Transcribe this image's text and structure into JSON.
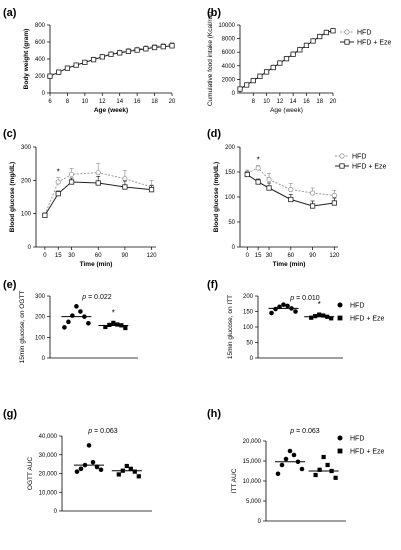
{
  "chart_data": [
    {
      "panel": "(a)",
      "type": "line",
      "xlabel": "Age  (week)",
      "ylabel": "Body weight (gram)",
      "xlim": [
        6,
        20
      ],
      "ylim": [
        0,
        800
      ],
      "xticks": [
        "6",
        "8",
        "10",
        "12",
        "14",
        "16",
        "18",
        "20"
      ],
      "yticks": [
        "0",
        "200",
        "400",
        "600",
        "800"
      ],
      "x": [
        6,
        7,
        8,
        9,
        10,
        11,
        12,
        13,
        14,
        15,
        16,
        17,
        18,
        19,
        20
      ],
      "series": [
        {
          "name": "HFD",
          "style": "open-circle-dotted",
          "values": [
            200,
            248,
            295,
            330,
            362,
            398,
            430,
            462,
            480,
            500,
            515,
            533,
            548,
            560,
            572
          ],
          "errors": [
            10,
            10,
            10,
            12,
            12,
            14,
            14,
            15,
            16,
            16,
            18,
            18,
            18,
            20,
            20
          ]
        },
        {
          "name": "HFD + Eze",
          "style": "square-solid",
          "values": [
            198,
            245,
            292,
            328,
            360,
            392,
            425,
            455,
            472,
            490,
            505,
            520,
            535,
            545,
            555
          ],
          "errors": [
            10,
            10,
            10,
            12,
            12,
            12,
            14,
            14,
            15,
            15,
            16,
            16,
            16,
            18,
            18
          ]
        }
      ]
    },
    {
      "panel": "(b)",
      "type": "line",
      "xlabel": "Age  (week)",
      "ylabel": "Cumulative food intake (Kcal/rat)",
      "xlim": [
        6,
        20
      ],
      "ylim": [
        0,
        10000
      ],
      "xticks": [
        "8",
        "10",
        "12",
        "14",
        "16",
        "18",
        "20"
      ],
      "yticks": [
        "0",
        "2000",
        "4000",
        "6000",
        "8000",
        "10000"
      ],
      "x": [
        6,
        7,
        8,
        9,
        10,
        11,
        12,
        13,
        14,
        15,
        16,
        17,
        18,
        19,
        20
      ],
      "series": [
        {
          "name": "HFD",
          "style": "open-circle-dotted",
          "values": [
            600,
            1200,
            1850,
            2500,
            3150,
            3800,
            4450,
            5100,
            5750,
            6400,
            7050,
            7700,
            8350,
            8950,
            9200
          ],
          "errors": []
        },
        {
          "name": "HFD + Eze",
          "style": "square-solid",
          "values": [
            580,
            1180,
            1820,
            2460,
            3100,
            3750,
            4400,
            5050,
            5700,
            6350,
            7000,
            7650,
            8300,
            8900,
            9150
          ],
          "errors": []
        }
      ],
      "legend": [
        "HFD",
        "HFD + Eze"
      ]
    },
    {
      "panel": "(c)",
      "type": "line",
      "xlabel": "Time (min)",
      "ylabel": "Blood glucose (mg/dL)",
      "xlim": [
        -10,
        125
      ],
      "ylim": [
        0,
        300
      ],
      "xticks": [
        "0",
        "15",
        "30",
        "60",
        "90",
        "120"
      ],
      "yticks": [
        "0",
        "100",
        "200",
        "300"
      ],
      "x": [
        0,
        15,
        30,
        60,
        90,
        120
      ],
      "series": [
        {
          "name": "HFD",
          "style": "open-circle-dotted",
          "values": [
            97,
            195,
            218,
            223,
            205,
            180
          ],
          "errors": [
            5,
            14,
            18,
            28,
            25,
            20
          ]
        },
        {
          "name": "HFD + Eze",
          "style": "square-solid",
          "values": [
            95,
            160,
            195,
            192,
            180,
            172
          ],
          "errors": [
            5,
            8,
            12,
            20,
            18,
            12
          ]
        }
      ],
      "annotations": [
        "*"
      ]
    },
    {
      "panel": "(d)",
      "type": "line",
      "xlabel": "Time (min)",
      "ylabel": "Blood glucose (mg/dL)",
      "xlim": [
        -10,
        125
      ],
      "ylim": [
        0,
        200
      ],
      "xticks": [
        "0",
        "15",
        "30",
        "60",
        "90",
        "120"
      ],
      "yticks": [
        "0",
        "50",
        "100",
        "150",
        "200"
      ],
      "x": [
        0,
        15,
        30,
        60,
        90,
        120
      ],
      "series": [
        {
          "name": "HFD",
          "style": "open-circle-dotted",
          "values": [
            148,
            158,
            135,
            115,
            108,
            103
          ],
          "errors": [
            6,
            5,
            12,
            12,
            10,
            10
          ]
        },
        {
          "name": "HFD + Eze",
          "style": "square-solid",
          "values": [
            145,
            130,
            118,
            95,
            82,
            88
          ],
          "errors": [
            5,
            6,
            10,
            10,
            10,
            10
          ]
        }
      ],
      "annotations": [
        "*"
      ],
      "legend": [
        "HFD",
        "HFD + Eze"
      ]
    },
    {
      "panel": "(e)",
      "type": "scatter",
      "ylabel": "15min glucose, on OGTT",
      "ylim": [
        0,
        300
      ],
      "yticks": [
        "0",
        "100",
        "200",
        "300"
      ],
      "p_prefix": "p",
      "p_value": " = 0.022",
      "groups": [
        {
          "name": "HFD",
          "marker": "circle",
          "values": [
            250,
            225,
            205,
            200,
            175,
            168,
            148
          ],
          "median": 200
        },
        {
          "name": "HFD + Eze",
          "marker": "square",
          "values": [
            170,
            162,
            160,
            158,
            150,
            145
          ],
          "median": 157,
          "star": "*"
        }
      ],
      "legend": [
        "HFD",
        "HFD + Eze"
      ]
    },
    {
      "panel": "(f)",
      "type": "scatter",
      "ylabel": "15min glucose, on ITT",
      "ylim": [
        0,
        200
      ],
      "yticks": [
        "0",
        "50",
        "100",
        "150",
        "200"
      ],
      "p_prefix": "p",
      "p_value": " = 0.010",
      "groups": [
        {
          "name": "HFD",
          "marker": "circle",
          "values": [
            172,
            168,
            165,
            160,
            158,
            150,
            145
          ],
          "median": 160
        },
        {
          "name": "HFD + Eze",
          "marker": "square",
          "values": [
            140,
            137,
            135,
            133,
            130,
            128
          ],
          "median": 133,
          "star": "*"
        }
      ]
    },
    {
      "panel": "(g)",
      "type": "scatter",
      "ylabel": "OGTT  AUC",
      "ylim": [
        0,
        40000
      ],
      "yticks": [
        "0",
        "10,000",
        "20,000",
        "30,000",
        "40,000"
      ],
      "p_prefix": "p",
      "p_value": " = 0.063",
      "groups": [
        {
          "name": "HFD",
          "marker": "circle",
          "values": [
            35000,
            26000,
            24500,
            23500,
            22500,
            22000,
            21000
          ],
          "median": 24500
        },
        {
          "name": "HFD + Eze",
          "marker": "square",
          "values": [
            24000,
            22500,
            21500,
            21000,
            19500,
            18500
          ],
          "median": 21500
        }
      ]
    },
    {
      "panel": "(h)",
      "type": "scatter",
      "ylabel": "ITT  AUC",
      "ylim": [
        0,
        20000
      ],
      "yticks": [
        "0",
        "5,000",
        "10,000",
        "15,000",
        "20,000"
      ],
      "p_prefix": "p",
      "p_value": " = 0.063",
      "groups": [
        {
          "name": "HFD",
          "marker": "circle",
          "values": [
            17500,
            16500,
            15500,
            14800,
            14000,
            13000,
            11800
          ],
          "median": 14800
        },
        {
          "name": "HFD + Eze",
          "marker": "square",
          "values": [
            16000,
            14000,
            12800,
            12500,
            11500,
            10800
          ],
          "median": 12500
        }
      ],
      "legend": [
        "HFD",
        "HFD + Eze"
      ]
    }
  ]
}
